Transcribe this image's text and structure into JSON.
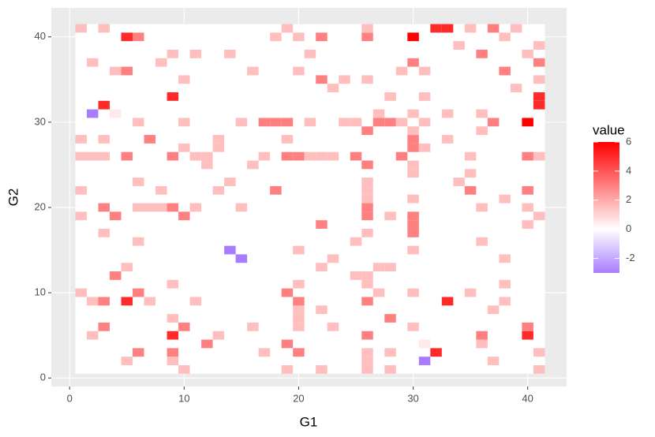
{
  "chart_data": {
    "type": "heatmap",
    "x_label": "G1",
    "y_label": "G2",
    "legend_title": "value",
    "xlim": [
      -1.6,
      43.4
    ],
    "ylim": [
      -1,
      43.4
    ],
    "xticks": [
      0,
      10,
      20,
      30,
      40
    ],
    "yticks": [
      0,
      10,
      20,
      30,
      40
    ],
    "colorlim": [
      -3,
      6
    ],
    "colorticks": [
      -2,
      0,
      2,
      4,
      6
    ],
    "low_color": "#a87cff",
    "mid_color": "#ffffff",
    "high_color": "#ff0000",
    "grid": true,
    "x": [
      1,
      10,
      1,
      19,
      1,
      22,
      1,
      26,
      1,
      28,
      1,
      41,
      2,
      5,
      2,
      9,
      2,
      31,
      2,
      37,
      2,
      26,
      3,
      6,
      3,
      20,
      3,
      28,
      3,
      32,
      3,
      9,
      3,
      17,
      3,
      41,
      3,
      26,
      4,
      31,
      4,
      12,
      4,
      19,
      4,
      36,
      5,
      9,
      5,
      40,
      5,
      13,
      5,
      26,
      5,
      36,
      6,
      10,
      6,
      20,
      6,
      40,
      6,
      16,
      6,
      23,
      6,
      30,
      7,
      20,
      7,
      28,
      7,
      9,
      8,
      20,
      8,
      22,
      8,
      37,
      9,
      33,
      9,
      20,
      9,
      26,
      9,
      38,
      9,
      11,
      10,
      27,
      10,
      35,
      10,
      30,
      10,
      19,
      11,
      26,
      11,
      20,
      11,
      38,
      12,
      26,
      12,
      25,
      13,
      22,
      13,
      28,
      13,
      27,
      14,
      15,
      14,
      23,
      14,
      38,
      15,
      30,
      15,
      20,
      16,
      36,
      16,
      25,
      17,
      30,
      17,
      26,
      18,
      30,
      18,
      22,
      18,
      40,
      19,
      30,
      19,
      26,
      19,
      28,
      19,
      41,
      20,
      26,
      20,
      40,
      20,
      36,
      21,
      30,
      21,
      26,
      21,
      38,
      22,
      35,
      22,
      26,
      22,
      40,
      23,
      26,
      23,
      34,
      24,
      30,
      24,
      35,
      25,
      26,
      25,
      30,
      26,
      40,
      26,
      29,
      26,
      35,
      26,
      41,
      27,
      30,
      27,
      31,
      28,
      30,
      28,
      33,
      29,
      30,
      29,
      36,
      30,
      40,
      30,
      31,
      30,
      37,
      31,
      33,
      31,
      36,
      32,
      41,
      33,
      41,
      34,
      39,
      35,
      41,
      36,
      38,
      37,
      41,
      38,
      40,
      39,
      41
    ],
    "y": [
      10,
      1,
      19,
      1,
      22,
      1,
      26,
      1,
      28,
      1,
      41,
      1,
      5,
      2,
      9,
      2,
      31,
      2,
      37,
      2,
      26,
      2,
      6,
      3,
      20,
      3,
      28,
      3,
      32,
      3,
      9,
      3,
      17,
      3,
      41,
      3,
      26,
      3,
      31,
      4,
      12,
      4,
      19,
      4,
      36,
      4,
      9,
      5,
      40,
      5,
      13,
      5,
      26,
      5,
      36,
      5,
      10,
      6,
      20,
      6,
      40,
      6,
      16,
      6,
      23,
      6,
      30,
      6,
      20,
      7,
      28,
      7,
      9,
      7,
      20,
      8,
      22,
      8,
      37,
      8,
      33,
      9,
      20,
      9,
      26,
      9,
      38,
      9,
      11,
      9,
      27,
      10,
      35,
      10,
      30,
      10,
      19,
      10,
      26,
      11,
      20,
      11,
      38,
      11,
      26,
      12,
      25,
      12,
      22,
      13,
      28,
      13,
      27,
      13,
      15,
      14,
      23,
      14,
      38,
      14,
      30,
      15,
      20,
      15,
      36,
      16,
      25,
      16,
      30,
      17,
      26,
      17,
      30,
      18,
      22,
      18,
      40,
      18,
      30,
      19,
      26,
      19,
      28,
      19,
      41,
      19,
      26,
      20,
      40,
      20,
      36,
      20,
      30,
      21,
      26,
      21,
      38,
      21,
      35,
      22,
      26,
      22,
      40,
      22,
      26,
      23,
      34,
      23,
      30,
      24,
      35,
      24,
      26,
      25,
      30,
      25,
      40,
      26,
      29,
      26,
      35,
      26,
      41,
      26,
      30,
      27,
      31,
      27,
      30,
      28,
      33,
      28,
      30,
      29,
      36,
      29,
      40,
      30,
      31,
      30,
      37,
      30,
      33,
      31,
      36,
      31,
      41,
      32,
      41,
      33,
      39,
      34,
      41,
      35,
      38,
      36,
      41,
      37,
      40,
      38,
      41,
      39
    ],
    "values": [
      1.5,
      1.5,
      1.5,
      1.5,
      1.5,
      1.5,
      1.5,
      1.5,
      1.5,
      1.5,
      1.5,
      1.5,
      1.5,
      1.5,
      1.5,
      1.5,
      -3,
      -3,
      1.5,
      1.5,
      1.5,
      1.5,
      3,
      3,
      3,
      3,
      1.5,
      1.5,
      5,
      5,
      3,
      3,
      1.5,
      1.5,
      1.5,
      1.5,
      1.5,
      1.5,
      0.5,
      0.5,
      3,
      3,
      3,
      3,
      1.5,
      1.5,
      5,
      5,
      5,
      5,
      1.5,
      1.5,
      3,
      3,
      3,
      3,
      3,
      3,
      1.5,
      1.5,
      3,
      3,
      1.5,
      1.5,
      1.5,
      1.5,
      1.5,
      1.5,
      1.5,
      1.5,
      3,
      3,
      1.5,
      1.5,
      1.5,
      1.5,
      1.5,
      1.5,
      1.5,
      1.5,
      5,
      5,
      3,
      3,
      3,
      3,
      1.5,
      1.5,
      1.5,
      1.5,
      1.5,
      1.5,
      1.5,
      1.5,
      1.5,
      1.5,
      3,
      3,
      1.5,
      1.5,
      1.5,
      1.5,
      1.5,
      1.5,
      1.5,
      1.5,
      1.5,
      1.5,
      1.5,
      1.5,
      1.5,
      1.5,
      1.5,
      1.5,
      -3,
      -3,
      1.5,
      1.5,
      1.5,
      1.5,
      1.5,
      1.5,
      1.5,
      1.5,
      1.5,
      1.5,
      1.5,
      1.5,
      3,
      3,
      1.5,
      1.5,
      3,
      3,
      3,
      3,
      1.5,
      1.5,
      3,
      3,
      3,
      3,
      1.5,
      1.5,
      1.5,
      1.5,
      3,
      3,
      1.5,
      1.5,
      1.5,
      1.5,
      1.5,
      1.5,
      1.5,
      1.5,
      1.5,
      1.5,
      3,
      3,
      1.5,
      1.5,
      3,
      3,
      1.5,
      1.5,
      1.5,
      1.5,
      1.5,
      1.5,
      1.5,
      1.5,
      3,
      3,
      1.5,
      1.5,
      3,
      3,
      3,
      3,
      1.5,
      1.5,
      1.5,
      1.5,
      3,
      3,
      1.5,
      1.5,
      3,
      3,
      1.5,
      1.5,
      1.5,
      1.5,
      1.5,
      1.5,
      6,
      6,
      1.5,
      1.5,
      3,
      3,
      1.5,
      1.5,
      1.5,
      1.5,
      5,
      5,
      5,
      5,
      1.5,
      1.5,
      1.5,
      1.5,
      3,
      3,
      3,
      3,
      1.5,
      1.5,
      1.5,
      1.5
    ]
  }
}
